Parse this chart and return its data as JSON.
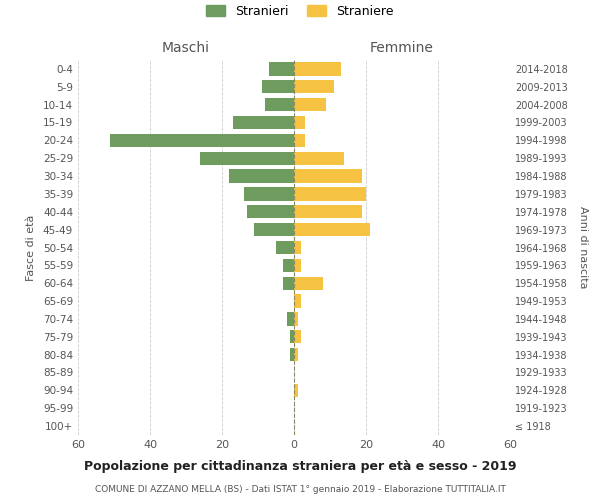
{
  "age_groups": [
    "100+",
    "95-99",
    "90-94",
    "85-89",
    "80-84",
    "75-79",
    "70-74",
    "65-69",
    "60-64",
    "55-59",
    "50-54",
    "45-49",
    "40-44",
    "35-39",
    "30-34",
    "25-29",
    "20-24",
    "15-19",
    "10-14",
    "5-9",
    "0-4"
  ],
  "birth_years": [
    "≤ 1918",
    "1919-1923",
    "1924-1928",
    "1929-1933",
    "1934-1938",
    "1939-1943",
    "1944-1948",
    "1949-1953",
    "1954-1958",
    "1959-1963",
    "1964-1968",
    "1969-1973",
    "1974-1978",
    "1979-1983",
    "1984-1988",
    "1989-1993",
    "1994-1998",
    "1999-2003",
    "2004-2008",
    "2009-2013",
    "2014-2018"
  ],
  "maschi": [
    0,
    0,
    0,
    0,
    1,
    1,
    2,
    0,
    3,
    3,
    5,
    11,
    13,
    14,
    18,
    26,
    51,
    17,
    8,
    9,
    7
  ],
  "femmine": [
    0,
    0,
    1,
    0,
    1,
    2,
    1,
    2,
    8,
    2,
    2,
    21,
    19,
    20,
    19,
    14,
    3,
    3,
    9,
    11,
    13
  ],
  "color_maschi": "#6e9b5e",
  "color_femmine": "#f5c242",
  "title": "Popolazione per cittadinanza straniera per età e sesso - 2019",
  "subtitle": "COMUNE DI AZZANO MELLA (BS) - Dati ISTAT 1° gennaio 2019 - Elaborazione TUTTITALIA.IT",
  "xlabel_left": "Maschi",
  "xlabel_right": "Femmine",
  "ylabel_left": "Fasce di età",
  "ylabel_right": "Anni di nascita",
  "xlim": 60,
  "legend_stranieri": "Stranieri",
  "legend_straniere": "Straniere",
  "background_color": "#ffffff",
  "grid_color": "#cccccc"
}
